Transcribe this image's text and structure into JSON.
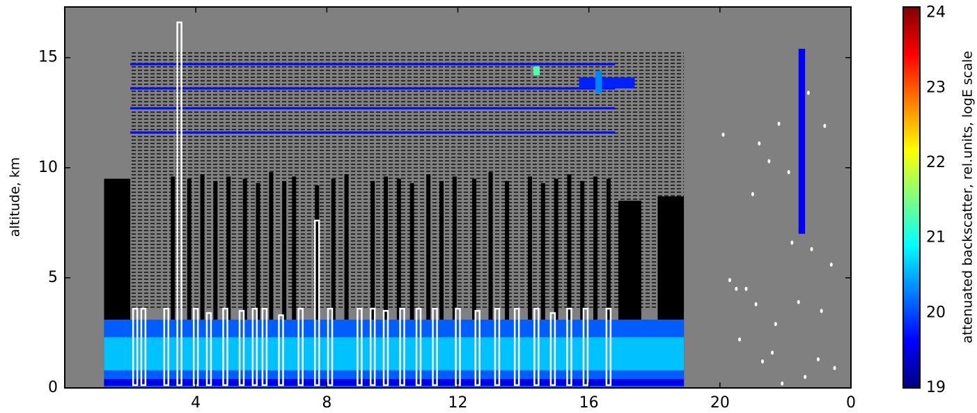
{
  "chart_data": {
    "type": "heatmap",
    "ylabel": "altitude, km",
    "colorbar_label": "attenuated backscatter, rel.units, logE scale",
    "colormap": "jet",
    "clim": [
      19,
      24.08
    ],
    "cticks": [
      19,
      20,
      21,
      22,
      23,
      24
    ],
    "xlim": [
      0,
      24
    ],
    "xticks": [
      4,
      8,
      12,
      16,
      20,
      {
        "value": 24,
        "label": "0"
      }
    ],
    "ylim": [
      0,
      17.3
    ],
    "yticks": [
      0,
      5,
      10,
      15
    ],
    "background": "#808080",
    "saturation_color": "#ffffff",
    "noise": {
      "x": [
        2.0,
        18.9
      ],
      "y": [
        3.6,
        15.3
      ],
      "value": 19
    },
    "regions": [
      {
        "x": [
          1.2,
          2.0
        ],
        "y": [
          0,
          9.5
        ],
        "value": 19
      },
      {
        "x": [
          16.9,
          17.6
        ],
        "y": [
          0,
          8.5
        ],
        "value": 19
      },
      {
        "x": [
          18.1,
          18.9
        ],
        "y": [
          0,
          8.7
        ],
        "value": 19
      },
      {
        "x": [
          1.2,
          18.9
        ],
        "y": [
          0,
          3.1
        ],
        "value": 20.1
      },
      {
        "x": [
          1.2,
          18.9
        ],
        "y": [
          0.8,
          2.3
        ],
        "value": 20.6
      },
      {
        "x": [
          1.2,
          18.9
        ],
        "y": [
          0.1,
          0.4
        ],
        "value": 19.5
      },
      {
        "x": [
          2.0,
          16.8
        ],
        "y": [
          14.65,
          14.75
        ],
        "value": 19.7
      },
      {
        "x": [
          2.0,
          16.8
        ],
        "y": [
          13.55,
          13.65
        ],
        "value": 19.7
      },
      {
        "x": [
          2.0,
          16.8
        ],
        "y": [
          12.65,
          12.75
        ],
        "value": 19.7
      },
      {
        "x": [
          2.0,
          16.8
        ],
        "y": [
          11.55,
          11.65
        ],
        "value": 19.7
      },
      {
        "x": [
          15.7,
          17.4
        ],
        "y": [
          13.6,
          14.1
        ],
        "value": 19.8
      },
      {
        "x": [
          16.2,
          16.4
        ],
        "y": [
          13.4,
          14.4
        ],
        "value": 20.3
      },
      {
        "x": [
          14.3,
          14.5
        ],
        "y": [
          14.2,
          14.6
        ],
        "value": 21.3
      },
      {
        "x": [
          22.4,
          22.6
        ],
        "y": [
          7.0,
          15.4
        ],
        "value": 19.6
      }
    ],
    "columns": {
      "x": [
        3.3,
        3.8,
        4.2,
        4.6,
        5.0,
        5.5,
        5.9,
        6.3,
        6.7,
        7.0,
        7.7,
        8.2,
        8.6,
        9.4,
        9.8,
        10.2,
        10.6,
        11.1,
        11.5,
        11.9,
        12.5,
        13.0,
        13.5,
        14.2,
        14.6,
        15.0,
        15.4,
        15.8,
        16.2,
        16.6
      ],
      "top": [
        9.6,
        9.5,
        9.7,
        9.4,
        9.6,
        9.5,
        9.3,
        9.8,
        9.4,
        9.6,
        9.2,
        9.5,
        9.7,
        9.4,
        9.6,
        9.5,
        9.3,
        9.7,
        9.4,
        9.6,
        9.5,
        9.8,
        9.4,
        9.6,
        9.3,
        9.5,
        9.7,
        9.4,
        9.6,
        9.5
      ]
    },
    "saturated": {
      "x": [
        2.15,
        2.4,
        3.1,
        3.5,
        4.0,
        4.4,
        4.9,
        5.4,
        5.8,
        6.1,
        6.6,
        7.2,
        7.7,
        8.1,
        9.0,
        9.4,
        9.8,
        10.3,
        10.8,
        11.3,
        12.0,
        12.6,
        13.2,
        13.8,
        14.4,
        14.9,
        15.4,
        15.9,
        16.6
      ],
      "top": [
        3.6,
        3.6,
        3.6,
        16.6,
        3.6,
        3.4,
        3.6,
        3.5,
        3.6,
        3.6,
        3.3,
        3.6,
        7.6,
        3.6,
        3.6,
        3.6,
        3.5,
        3.6,
        3.6,
        3.6,
        3.6,
        3.5,
        3.6,
        3.6,
        3.6,
        3.4,
        3.6,
        3.6,
        3.6
      ]
    },
    "points": {
      "x": [
        20.1,
        20.3,
        20.5,
        20.6,
        20.8,
        21.0,
        21.1,
        21.2,
        21.3,
        21.5,
        21.6,
        21.7,
        21.8,
        21.9,
        22.1,
        22.2,
        22.4,
        22.6,
        22.7,
        22.8,
        23.0,
        23.1,
        23.2,
        23.4,
        23.5
      ],
      "y": [
        11.5,
        4.9,
        4.5,
        2.2,
        4.5,
        8.8,
        3.8,
        11.1,
        1.2,
        10.3,
        1.6,
        2.9,
        12.0,
        0.2,
        9.8,
        6.6,
        3.9,
        0.5,
        13.4,
        6.3,
        1.3,
        3.5,
        11.9,
        5.6,
        0.9
      ]
    }
  }
}
